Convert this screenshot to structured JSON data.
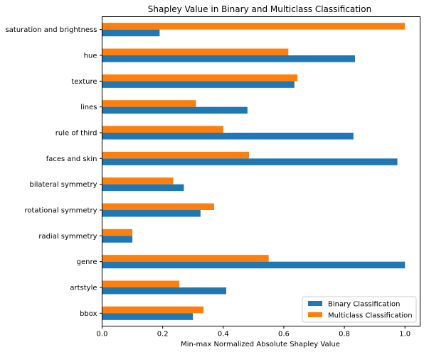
{
  "chart_data": {
    "type": "bar",
    "orientation": "horizontal",
    "title": "Shapley Value in Binary and Multiclass Classification",
    "xlabel": "Min-max Normalized Absolute Shapley Value",
    "ylabel": "",
    "xlim": [
      0,
      1.05
    ],
    "xticks": [
      "0.0",
      "0.2",
      "0.4",
      "0.6",
      "0.8",
      "1.0"
    ],
    "grid": false,
    "legend_position": "lower right",
    "categories": [
      "saturation and brightness",
      "hue",
      "texture",
      "lines",
      "rule of third",
      "faces and skin",
      "bilateral symmetry",
      "rotational symmetry",
      "radial symmetry",
      "genre",
      "artstyle",
      "bbox"
    ],
    "series": [
      {
        "name": "Binary Classification",
        "color": "#1f77b4",
        "values": [
          0.19,
          0.835,
          0.635,
          0.48,
          0.83,
          0.975,
          0.27,
          0.325,
          0.1,
          1.0,
          0.41,
          0.3
        ]
      },
      {
        "name": "Multiclass Classification",
        "color": "#ff7f0e",
        "values": [
          1.0,
          0.615,
          0.645,
          0.31,
          0.4,
          0.485,
          0.235,
          0.37,
          0.1,
          0.55,
          0.255,
          0.335
        ]
      }
    ]
  }
}
